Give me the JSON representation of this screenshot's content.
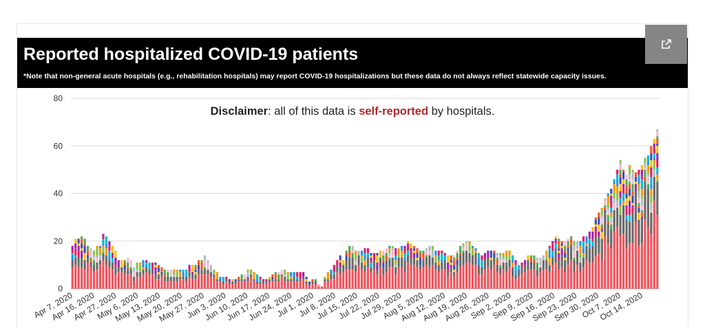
{
  "header": {
    "title": "Reported hospitalized COVID-19 patients",
    "note": "*Note that non-general acute hospitals (e.g., rehabilitation hospitals) may report COVID-19 hospitalizations but these data do not always reflect statewide capacity issues."
  },
  "open_external_icon": "open-in-new-icon",
  "disclaimer": {
    "bold": "Disclaimer",
    "middle": ": all of this data is ",
    "highlight": "self-reported",
    "end": " by hospitals."
  },
  "colors": {
    "header_bg": "#000000",
    "disclaimer_highlight": "#b3262c",
    "palette": [
      "#f0555e",
      "#6b6b6b",
      "#8bc34a",
      "#ff9800",
      "#2196f3",
      "#00bcd4",
      "#e91e63",
      "#9c27b0",
      "#ffc107",
      "#3f51b5",
      "#ff5722",
      "#4caf50",
      "#f8bbd0",
      "#b0bec5"
    ]
  },
  "chart_data": {
    "type": "bar",
    "stacked": true,
    "ylim": [
      0,
      80
    ],
    "yticks": [
      0,
      20,
      40,
      60,
      80
    ],
    "grid": true,
    "xlabel": "",
    "ylabel": "",
    "x_tick_labels": [
      "Apr 7, 2020",
      "Apr 16, 2020",
      "Apr 27, 2020",
      "May 6, 2020",
      "May 13, 2020",
      "May 20, 2020",
      "May 27, 2020",
      "Jun 3, 2020",
      "Jun 10, 2020",
      "Jun 17, 2020",
      "Jun 24, 2020",
      "Jul 1, 2020",
      "Jul 8, 2020",
      "Jul 15, 2020",
      "Jul 22, 2020",
      "Jul 29, 2020",
      "Aug 5, 2020",
      "Aug 12, 2020",
      "Aug 19, 2020",
      "Aug 26, 2020",
      "Sep 2, 2020",
      "Sep 9, 2020",
      "Sep 16, 2020",
      "Sep 23, 2020",
      "Sep 30, 2020",
      "Oct 7, 2020",
      "Oct 14, 2020"
    ],
    "daily_totals": [
      18,
      21,
      21,
      22,
      21,
      18,
      17,
      16,
      18,
      18,
      23,
      22,
      20,
      18,
      16,
      12,
      12,
      12,
      13,
      12,
      9,
      11,
      11,
      12,
      12,
      11,
      11,
      11,
      10,
      9,
      8,
      8,
      8,
      8,
      8,
      8,
      8,
      8,
      10,
      10,
      10,
      12,
      12,
      14,
      12,
      10,
      8,
      7,
      5,
      5,
      5,
      4,
      4,
      4,
      5,
      6,
      6,
      8,
      8,
      7,
      6,
      5,
      4,
      4,
      5,
      6,
      7,
      7,
      8,
      8,
      7,
      7,
      7,
      7,
      7,
      7,
      5,
      3,
      4,
      4,
      2,
      1,
      5,
      7,
      8,
      10,
      12,
      14,
      12,
      16,
      18,
      18,
      16,
      16,
      16,
      17,
      17,
      15,
      15,
      15,
      16,
      16,
      17,
      18,
      18,
      17,
      17,
      18,
      18,
      20,
      19,
      18,
      17,
      16,
      16,
      17,
      18,
      18,
      16,
      16,
      16,
      15,
      14,
      14,
      14,
      16,
      18,
      19,
      20,
      20,
      18,
      17,
      15,
      14,
      15,
      16,
      16,
      16,
      15,
      15,
      15,
      16,
      16,
      14,
      12,
      10,
      11,
      12,
      14,
      14,
      14,
      13,
      13,
      14,
      16,
      18,
      20,
      22,
      21,
      20,
      20,
      21,
      22,
      20,
      20,
      20,
      22,
      22,
      24,
      26,
      30,
      32,
      34,
      38,
      40,
      42,
      46,
      50,
      54,
      50,
      48,
      52,
      50,
      49,
      50,
      52,
      55,
      56,
      60,
      63,
      67
    ]
  }
}
